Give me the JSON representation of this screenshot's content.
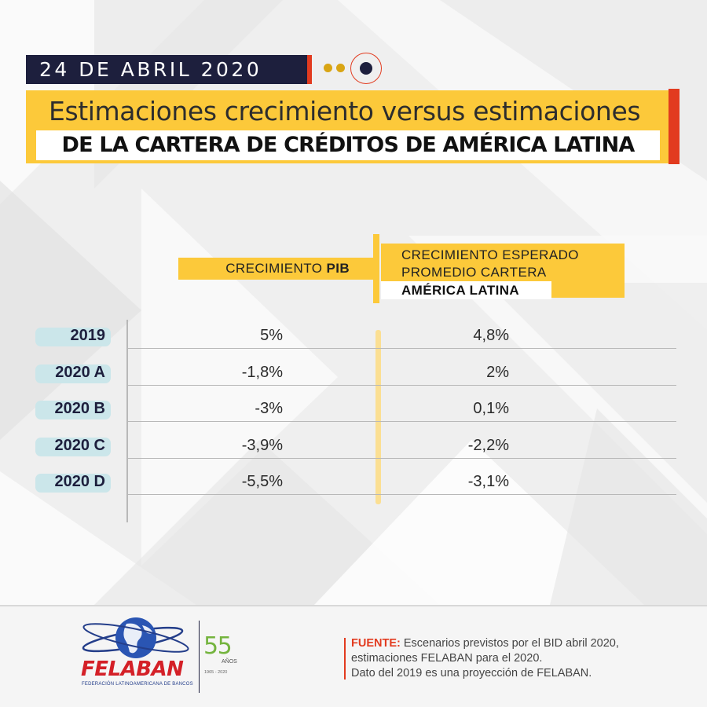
{
  "header": {
    "date": "24 DE ABRIL 2020",
    "title_line1": "Estimaciones crecimiento versus estimaciones",
    "title_line2": "DE LA CARTERA DE CRÉDITOS DE AMÉRICA LATINA"
  },
  "table": {
    "col_pib": {
      "label_prefix": "CRECIMIENTO ",
      "label_bold": "PIB"
    },
    "col_cartera": {
      "line1": "CRECIMIENTO ESPERADO",
      "line2": "PROMEDIO CARTERA",
      "line3": "AMÉRICA LATINA"
    },
    "rows": [
      {
        "label": "2019",
        "pib": "5%",
        "cartera": "4,8%"
      },
      {
        "label": "2020 A",
        "pib": "-1,8%",
        "cartera": "2%"
      },
      {
        "label": "2020 B",
        "pib": "-3%",
        "cartera": "0,1%"
      },
      {
        "label": "2020 C",
        "pib": "-3,9%",
        "cartera": "-2,2%"
      },
      {
        "label": "2020 D",
        "pib": "-5,5%",
        "cartera": "-3,1%"
      }
    ]
  },
  "footer": {
    "logo_name": "FELABAN",
    "logo_subtitle": "FEDERACIÓN LATINOAMERICANA DE BANCOS",
    "anniversary_number": "55",
    "anniversary_word": "AÑOS",
    "anniversary_years": "1965 - 2020",
    "source_label": "FUENTE:",
    "source_line1": " Escenarios previstos por el BID abril 2020,",
    "source_line2": "estimaciones FELABAN para el 2020.",
    "source_line3": "Dato del 2019 es una proyección de FELABAN."
  },
  "colors": {
    "navy": "#1d1f3d",
    "yellow": "#fcc93a",
    "red": "#e23b1f",
    "pill": "#cbe6ea"
  },
  "icons": [
    "globe-logo-icon",
    "dots-icon",
    "ring-icon"
  ]
}
